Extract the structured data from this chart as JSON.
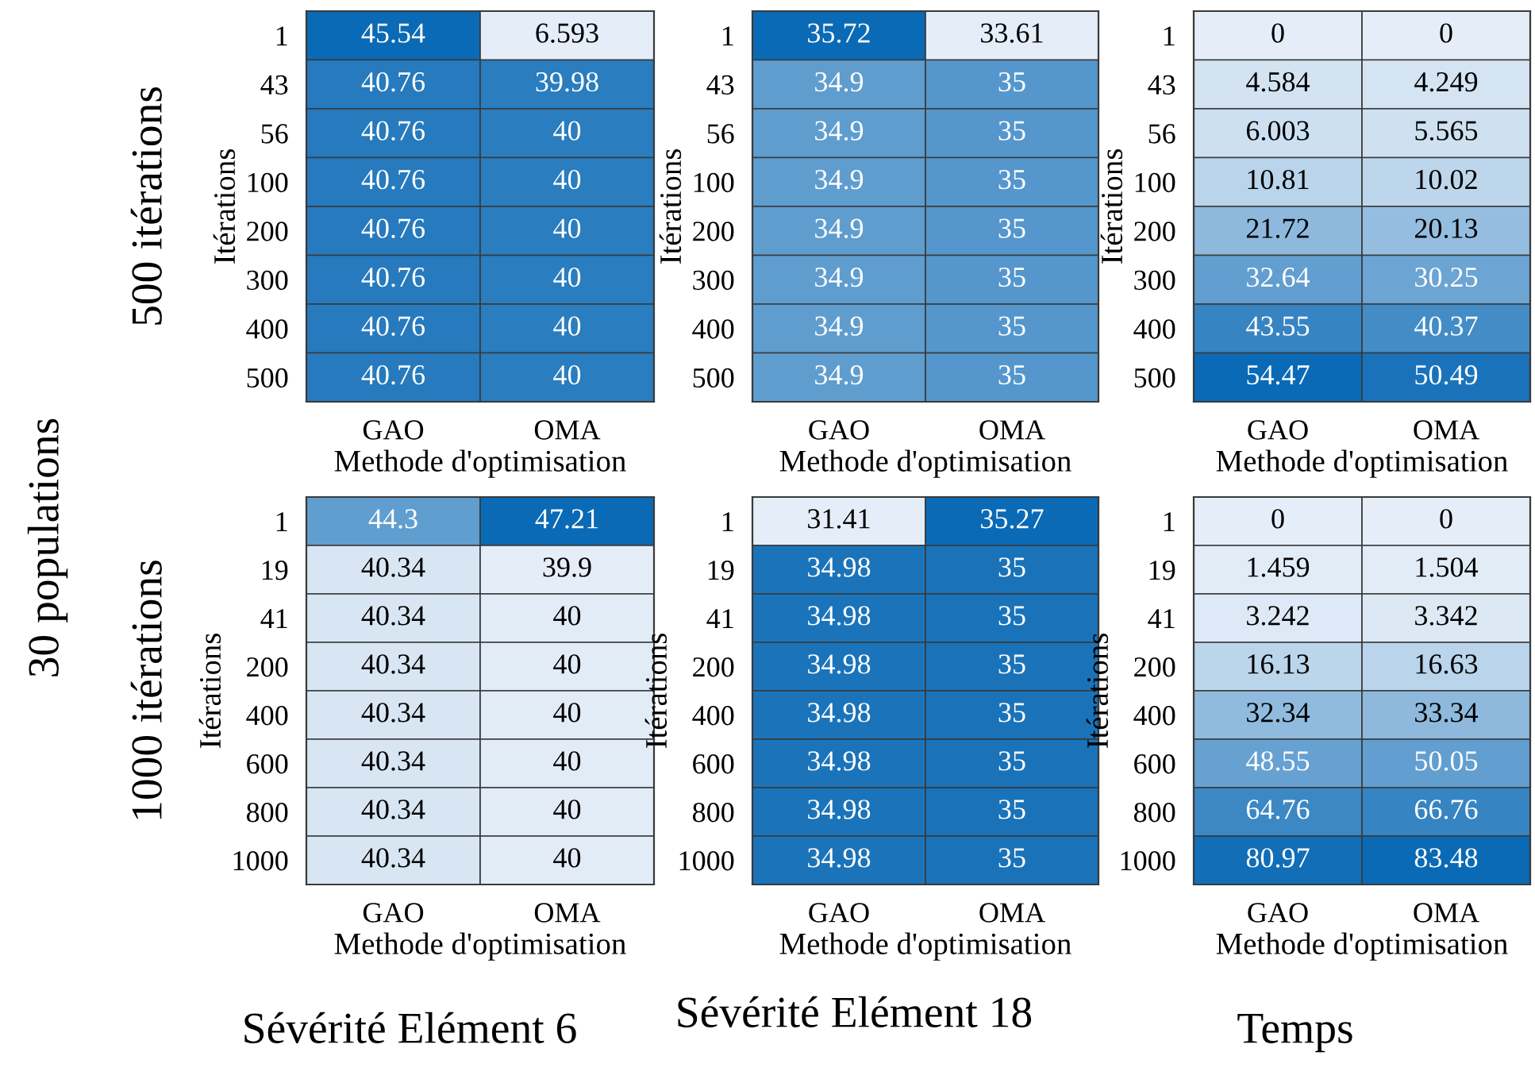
{
  "chart_data": [
    {
      "type": "heatmap",
      "categories": [
        "GAO",
        "OMA"
      ],
      "y_categories": [
        "1",
        "43",
        "56",
        "100",
        "200",
        "300",
        "400",
        "500"
      ],
      "cells": [
        [
          45.54,
          6.593
        ],
        [
          40.76,
          39.98
        ],
        [
          40.76,
          40
        ],
        [
          40.76,
          40
        ],
        [
          40.76,
          40
        ],
        [
          40.76,
          40
        ],
        [
          40.76,
          40
        ],
        [
          40.76,
          40
        ]
      ],
      "xlabel": "Methode d'optimisation",
      "ylabel": "Itérations",
      "colors": [
        "#e5eef8",
        "#0b6ab5"
      ],
      "data_labels": true,
      "annotations": [
        "30 populations",
        "500 itérations"
      ]
    },
    {
      "type": "heatmap",
      "categories": [
        "GAO",
        "OMA"
      ],
      "y_categories": [
        "1",
        "43",
        "56",
        "100",
        "200",
        "300",
        "400",
        "500"
      ],
      "cells": [
        [
          35.72,
          33.61
        ],
        [
          34.9,
          35
        ],
        [
          34.9,
          35
        ],
        [
          34.9,
          35
        ],
        [
          34.9,
          35
        ],
        [
          34.9,
          35
        ],
        [
          34.9,
          35
        ],
        [
          34.9,
          35
        ]
      ],
      "xlabel": "Methode d'optimisation",
      "ylabel": "Itérations",
      "colors": [
        "#e5eef8",
        "#0b6ab5"
      ],
      "data_labels": true
    },
    {
      "type": "heatmap",
      "categories": [
        "GAO",
        "OMA"
      ],
      "y_categories": [
        "1",
        "43",
        "56",
        "100",
        "200",
        "300",
        "400",
        "500"
      ],
      "cells": [
        [
          0,
          0
        ],
        [
          4.584,
          4.249
        ],
        [
          6.003,
          5.565
        ],
        [
          10.81,
          10.02
        ],
        [
          21.72,
          20.13
        ],
        [
          32.64,
          30.25
        ],
        [
          43.55,
          40.37
        ],
        [
          54.47,
          50.49
        ]
      ],
      "xlabel": "Methode d'optimisation",
      "ylabel": "Itérations",
      "colors": [
        "#e5eef8",
        "#0b6ab5"
      ],
      "data_labels": true
    },
    {
      "type": "heatmap",
      "categories": [
        "GAO",
        "OMA"
      ],
      "y_categories": [
        "1",
        "19",
        "41",
        "200",
        "400",
        "600",
        "800",
        "1000"
      ],
      "cells": [
        [
          44.3,
          47.21
        ],
        [
          40.34,
          39.9
        ],
        [
          40.34,
          40
        ],
        [
          40.34,
          40
        ],
        [
          40.34,
          40
        ],
        [
          40.34,
          40
        ],
        [
          40.34,
          40
        ],
        [
          40.34,
          40
        ]
      ],
      "xlabel": "Methode d'optimisation",
      "ylabel": "Itérations",
      "colors": [
        "#e5eef8",
        "#0b6ab5"
      ],
      "data_labels": true,
      "annotations": [
        "1000 itérations",
        "Sévérité Elément 6"
      ]
    },
    {
      "type": "heatmap",
      "categories": [
        "GAO",
        "OMA"
      ],
      "y_categories": [
        "1",
        "19",
        "41",
        "200",
        "400",
        "600",
        "800",
        "1000"
      ],
      "cells": [
        [
          31.41,
          35.27
        ],
        [
          34.98,
          35
        ],
        [
          34.98,
          35
        ],
        [
          34.98,
          35
        ],
        [
          34.98,
          35
        ],
        [
          34.98,
          35
        ],
        [
          34.98,
          35
        ],
        [
          34.98,
          35
        ]
      ],
      "xlabel": "Methode d'optimisation",
      "ylabel": "Itérations",
      "colors": [
        "#e5eef8",
        "#0b6ab5"
      ],
      "data_labels": true,
      "annotations": [
        "Sévérité Elément 18"
      ]
    },
    {
      "type": "heatmap",
      "categories": [
        "GAO",
        "OMA"
      ],
      "y_categories": [
        "1",
        "19",
        "41",
        "200",
        "400",
        "600",
        "800",
        "1000"
      ],
      "cells": [
        [
          0,
          0
        ],
        [
          1.459,
          1.504
        ],
        [
          3.242,
          3.342
        ],
        [
          16.13,
          16.63
        ],
        [
          32.34,
          33.34
        ],
        [
          48.55,
          50.05
        ],
        [
          64.76,
          66.76
        ],
        [
          80.97,
          83.48
        ]
      ],
      "xlabel": "Methode d'optimisation",
      "ylabel": "Itérations",
      "colors": [
        "#e5eef8",
        "#0b6ab5"
      ],
      "data_labels": true,
      "annotations": [
        "Temps"
      ]
    }
  ]
}
